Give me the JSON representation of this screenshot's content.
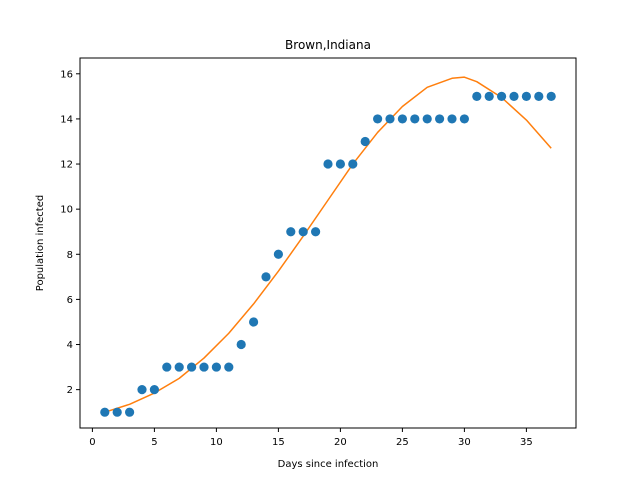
{
  "chart_data": {
    "type": "scatter",
    "title": "Brown,Indiana",
    "xlabel": "Days since infection",
    "ylabel": "Population infected",
    "xlim": [
      -1,
      39
    ],
    "ylim": [
      0.3,
      16.7
    ],
    "xticks": [
      0,
      5,
      10,
      15,
      20,
      25,
      30,
      35
    ],
    "yticks": [
      2,
      4,
      6,
      8,
      10,
      12,
      14,
      16
    ],
    "grid": false,
    "series": [
      {
        "kind": "scatter",
        "color": "#1f77b4",
        "x": [
          1,
          2,
          3,
          4,
          5,
          6,
          7,
          8,
          9,
          10,
          11,
          12,
          13,
          14,
          15,
          16,
          17,
          18,
          19,
          20,
          21,
          22,
          23,
          24,
          25,
          26,
          27,
          28,
          29,
          30,
          31,
          32,
          33,
          34,
          35,
          36,
          37
        ],
        "y": [
          1,
          1,
          1,
          2,
          2,
          3,
          3,
          3,
          3,
          3,
          3,
          4,
          5,
          7,
          8,
          9,
          9,
          9,
          12,
          12,
          12,
          13,
          14,
          14,
          14,
          14,
          14,
          14,
          14,
          14,
          15,
          15,
          15,
          15,
          15,
          15,
          15
        ]
      },
      {
        "kind": "line",
        "color": "#ff7f0e",
        "x": [
          1,
          3,
          5,
          7,
          9,
          11,
          13,
          15,
          17,
          19,
          21,
          23,
          25,
          27,
          29,
          30,
          31,
          33,
          35,
          37
        ],
        "y": [
          1.0,
          1.35,
          1.85,
          2.5,
          3.4,
          4.5,
          5.8,
          7.25,
          8.8,
          10.4,
          12.0,
          13.4,
          14.55,
          15.4,
          15.8,
          15.85,
          15.65,
          14.95,
          13.95,
          12.7
        ]
      }
    ]
  }
}
